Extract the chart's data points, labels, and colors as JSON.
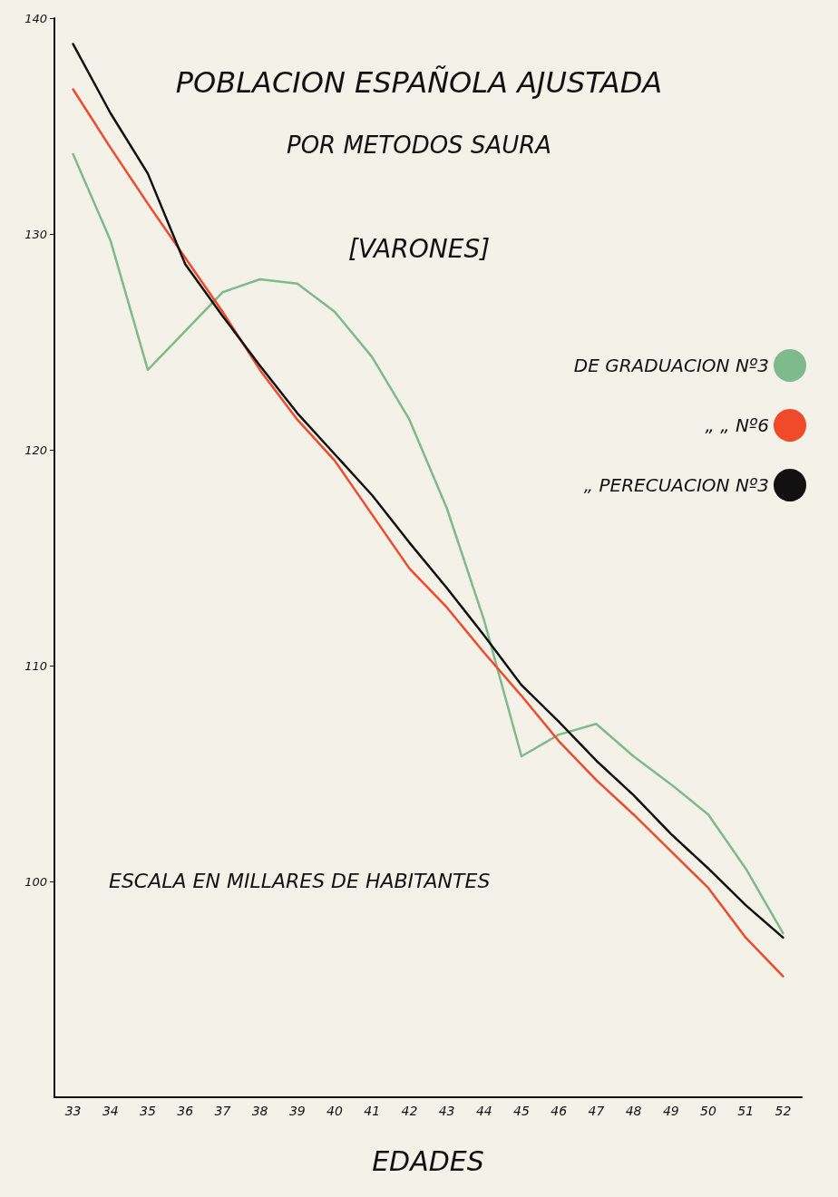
{
  "chart_data": {
    "type": "line",
    "title": "POBLACION ESPAÑOLA AJUSTADA",
    "subtitle": "POR METODOS SAURA",
    "annotations": [
      "[VARONES]",
      "ESCALA EN MILLARES DE HABITANTES"
    ],
    "xlabel": "EDADES",
    "categories": [
      "33",
      "34",
      "35",
      "36",
      "37",
      "38",
      "39",
      "40",
      "41",
      "42",
      "43",
      "44",
      "45",
      "46",
      "47",
      "48",
      "49",
      "50",
      "51",
      "52"
    ],
    "series": [
      {
        "name": "DE GRADUACION Nº3",
        "color": "#7fba8c",
        "values": [
          133.7,
          129.7,
          123.7,
          125.5,
          127.3,
          127.9,
          127.7,
          126.4,
          124.3,
          121.4,
          117.3,
          112.1,
          105.8,
          106.8,
          107.3,
          105.8,
          104.5,
          103.1,
          100.6,
          97.6
        ]
      },
      {
        "name": "„ „ Nº6",
        "color": "#f04a2a",
        "values": [
          136.7,
          134.0,
          131.4,
          128.9,
          126.4,
          123.7,
          121.4,
          119.5,
          117.0,
          114.5,
          112.7,
          110.6,
          108.6,
          106.5,
          104.7,
          103.1,
          101.4,
          99.7,
          97.4,
          95.6
        ]
      },
      {
        "name": "„ PERECUACION Nº3",
        "color": "#111111",
        "values": [
          138.8,
          135.6,
          132.8,
          128.6,
          126.2,
          123.9,
          121.7,
          119.8,
          117.9,
          115.7,
          113.6,
          111.4,
          109.1,
          107.4,
          105.6,
          104.0,
          102.2,
          100.6,
          98.9,
          97.4
        ]
      }
    ],
    "ylim": [
      90,
      140
    ],
    "yticks": [
      100,
      110,
      120,
      130,
      140
    ],
    "grid": false,
    "legend": "right",
    "marker": "none",
    "line_style": "solid"
  }
}
